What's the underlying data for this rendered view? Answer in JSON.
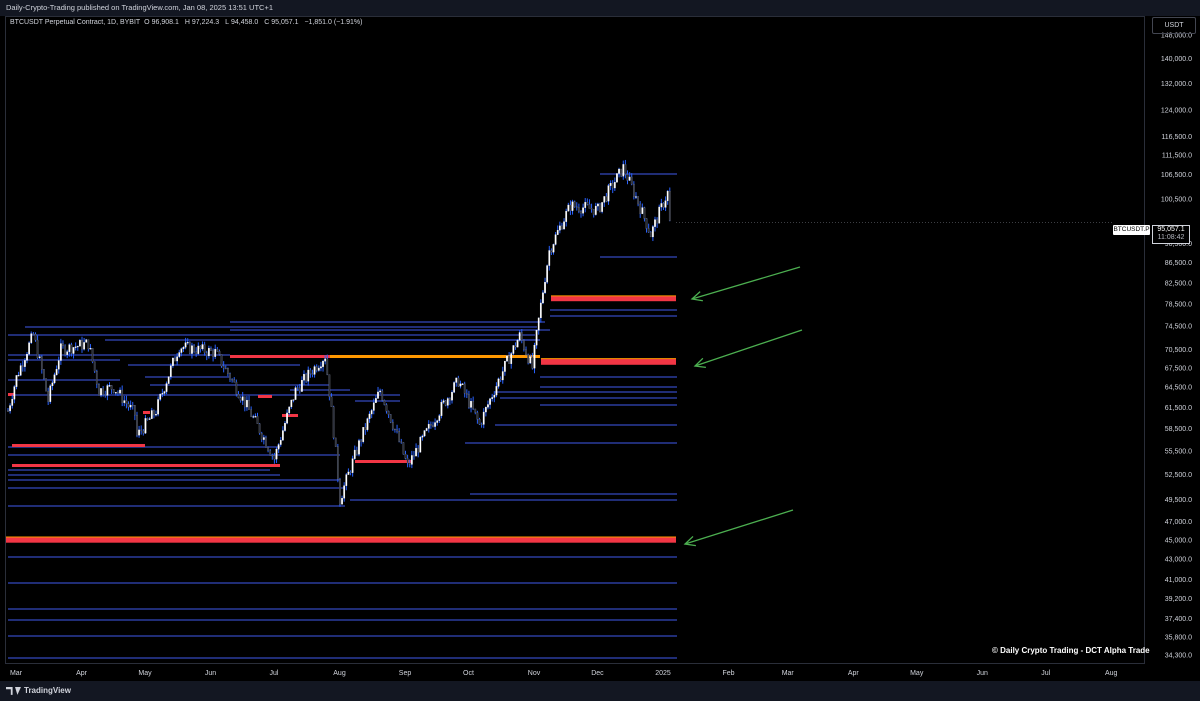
{
  "header": {
    "publisher_text": "Daily-Crypto-Trading published on TradingView.com, Jan 08, 2025 13:51 UTC+1"
  },
  "legend": {
    "symbol": "BTCUSDT Perpetual Contract, 1D, BYBIT",
    "o_label": "O",
    "o_value": "96,908.1",
    "h_label": "H",
    "h_value": "97,224.3",
    "l_label": "L",
    "l_value": "94,458.0",
    "c_label": "C",
    "c_value": "95,057.1",
    "change": "−1,851.0 (−1.91%)"
  },
  "price_axis": {
    "currency": "USDT",
    "ticks": [
      "148,000.0",
      "140,000.0",
      "132,000.0",
      "124,000.0",
      "116,500.0",
      "111,500.0",
      "106,500.0",
      "100,500.0",
      "90,500.0",
      "86,500.0",
      "82,500.0",
      "78,500.0",
      "74,500.0",
      "70,500.0",
      "67,500.0",
      "64,500.0",
      "61,500.0",
      "58,500.0",
      "55,500.0",
      "52,500.0",
      "49,500.0",
      "47,000.0",
      "45,000.0",
      "43,000.0",
      "41,000.0",
      "39,200.0",
      "37,400.0",
      "35,800.0",
      "34,300.0"
    ],
    "last_price": "95,057.1",
    "countdown": "11:08:42",
    "symbol_tag": "BTCUSDT.P"
  },
  "time_axis": {
    "labels": [
      "Mar",
      "Apr",
      "May",
      "Jun",
      "Jul",
      "Aug",
      "Sep",
      "Oct",
      "Nov",
      "Dec",
      "2025",
      "Feb",
      "Mar",
      "Apr",
      "May",
      "Jun",
      "Jul",
      "Aug"
    ]
  },
  "watermark": "© Daily Crypto Trading - DCT Alpha Trade",
  "footer": {
    "brand": "TradingView"
  },
  "colors": {
    "level_line": "#2a3c9e",
    "zone_red": "#f23645",
    "zone_orange": "#ff9800",
    "arrow": "#4caf50",
    "candle_up": "#ffffff",
    "candle_wick": "#2962ff"
  },
  "chart_data": {
    "type": "candlestick",
    "symbol": "BTCUSDT Perpetual Contract",
    "timeframe": "1D",
    "exchange": "BYBIT",
    "ohlc_last": {
      "open": 96908.1,
      "high": 97224.3,
      "low": 94458.0,
      "close": 95057.1,
      "change": -1851.0,
      "change_pct": -1.91
    },
    "price_path": [
      [
        "2024-03-01",
        61000
      ],
      [
        "2024-03-05",
        66000
      ],
      [
        "2024-03-13",
        73000
      ],
      [
        "2024-03-20",
        62500
      ],
      [
        "2024-03-26",
        70500
      ],
      [
        "2024-04-08",
        71500
      ],
      [
        "2024-04-13",
        64000
      ],
      [
        "2024-04-20",
        64500
      ],
      [
        "2024-04-30",
        60500
      ],
      [
        "2024-05-01",
        57500
      ],
      [
        "2024-05-10",
        61000
      ],
      [
        "2024-05-21",
        71000
      ],
      [
        "2024-06-07",
        70000
      ],
      [
        "2024-06-24",
        60500
      ],
      [
        "2024-07-05",
        54500
      ],
      [
        "2024-07-15",
        64000
      ],
      [
        "2024-07-29",
        69500
      ],
      [
        "2024-08-05",
        49500
      ],
      [
        "2024-08-24",
        64000
      ],
      [
        "2024-09-06",
        53500
      ],
      [
        "2024-09-30",
        65500
      ],
      [
        "2024-10-10",
        59000
      ],
      [
        "2024-10-29",
        72800
      ],
      [
        "2024-11-04",
        67500
      ],
      [
        "2024-11-12",
        89000
      ],
      [
        "2024-11-22",
        99000
      ],
      [
        "2024-12-05",
        98000
      ],
      [
        "2024-12-17",
        108200
      ],
      [
        "2024-12-30",
        92500
      ],
      [
        "2025-01-07",
        102000
      ],
      [
        "2025-01-08",
        95057.1
      ]
    ],
    "support_zones": [
      {
        "low": 79000,
        "high": 80000,
        "color": "red"
      },
      {
        "low": 68000,
        "high": 69000,
        "color": "red"
      },
      {
        "low": 44700,
        "high": 45300,
        "color": "red"
      }
    ],
    "annotations": [
      "green arrow pointing at 79,000–80,000 zone",
      "green arrow pointing at 68,000–69,000 zone",
      "green arrow pointing at 45,000 zone"
    ],
    "ylim": [
      34300,
      148000
    ],
    "y_scale": "log",
    "xrange": [
      "2024-03-01",
      "2025-08-31"
    ],
    "grid": false
  }
}
